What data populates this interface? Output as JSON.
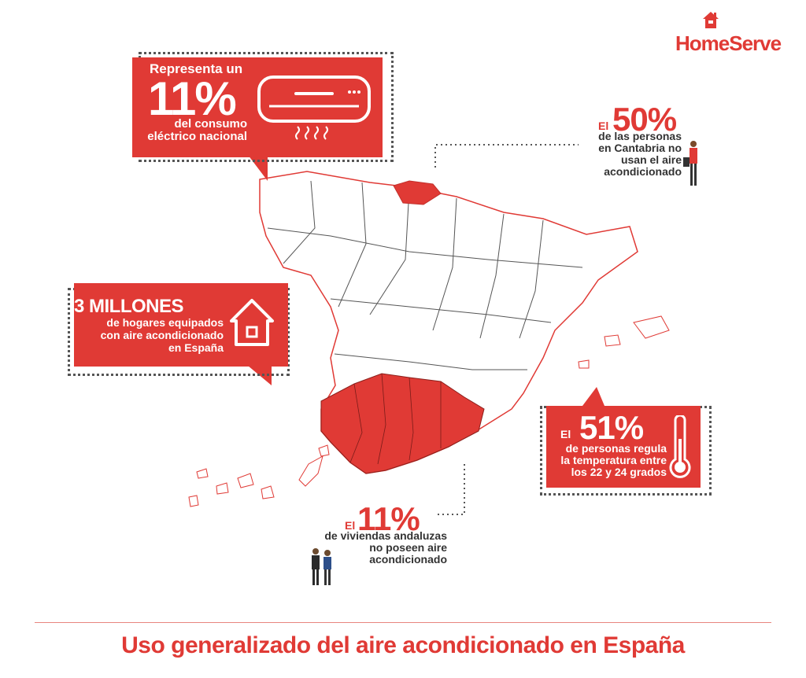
{
  "brand": {
    "name": "HomeServe",
    "color": "#e03a35",
    "icon": "house-icon"
  },
  "title": "Uso generalizado del aire acondicionado en España",
  "stats": {
    "consumo": {
      "prefix": "Representa un",
      "value": "11%",
      "line1": "del consumo",
      "line2": "eléctrico nacional",
      "icon": "air-conditioner-icon"
    },
    "hogares": {
      "value": "3 MILLONES",
      "line1": "de hogares equipados",
      "line2": "con aire acondicionado",
      "line3": "en España",
      "icon": "house-outline-icon"
    },
    "cantabria": {
      "prefix": "El",
      "value": "50%",
      "line1": "de las personas",
      "line2": "en Cantabria no",
      "line3": "usan el aire",
      "line4": "acondicionado",
      "icon": "people-icon"
    },
    "temperatura": {
      "prefix": "El",
      "value": "51%",
      "line1": "de personas regula",
      "line2": "la temperatura entre",
      "line3": "los 22 y 24 grados",
      "icon": "thermometer-icon"
    },
    "andalucia": {
      "prefix": "El",
      "value": "11%",
      "line1": "de viviendas andaluzas",
      "line2": "no poseen aire",
      "line3": "acondicionado",
      "icon": "people-icon"
    }
  },
  "map": {
    "highlight_color": "#e03a35",
    "border_color": "#e03a35",
    "internal_border_color": "#555555",
    "highlighted_regions": [
      "Cantabria",
      "Andalucía"
    ]
  }
}
